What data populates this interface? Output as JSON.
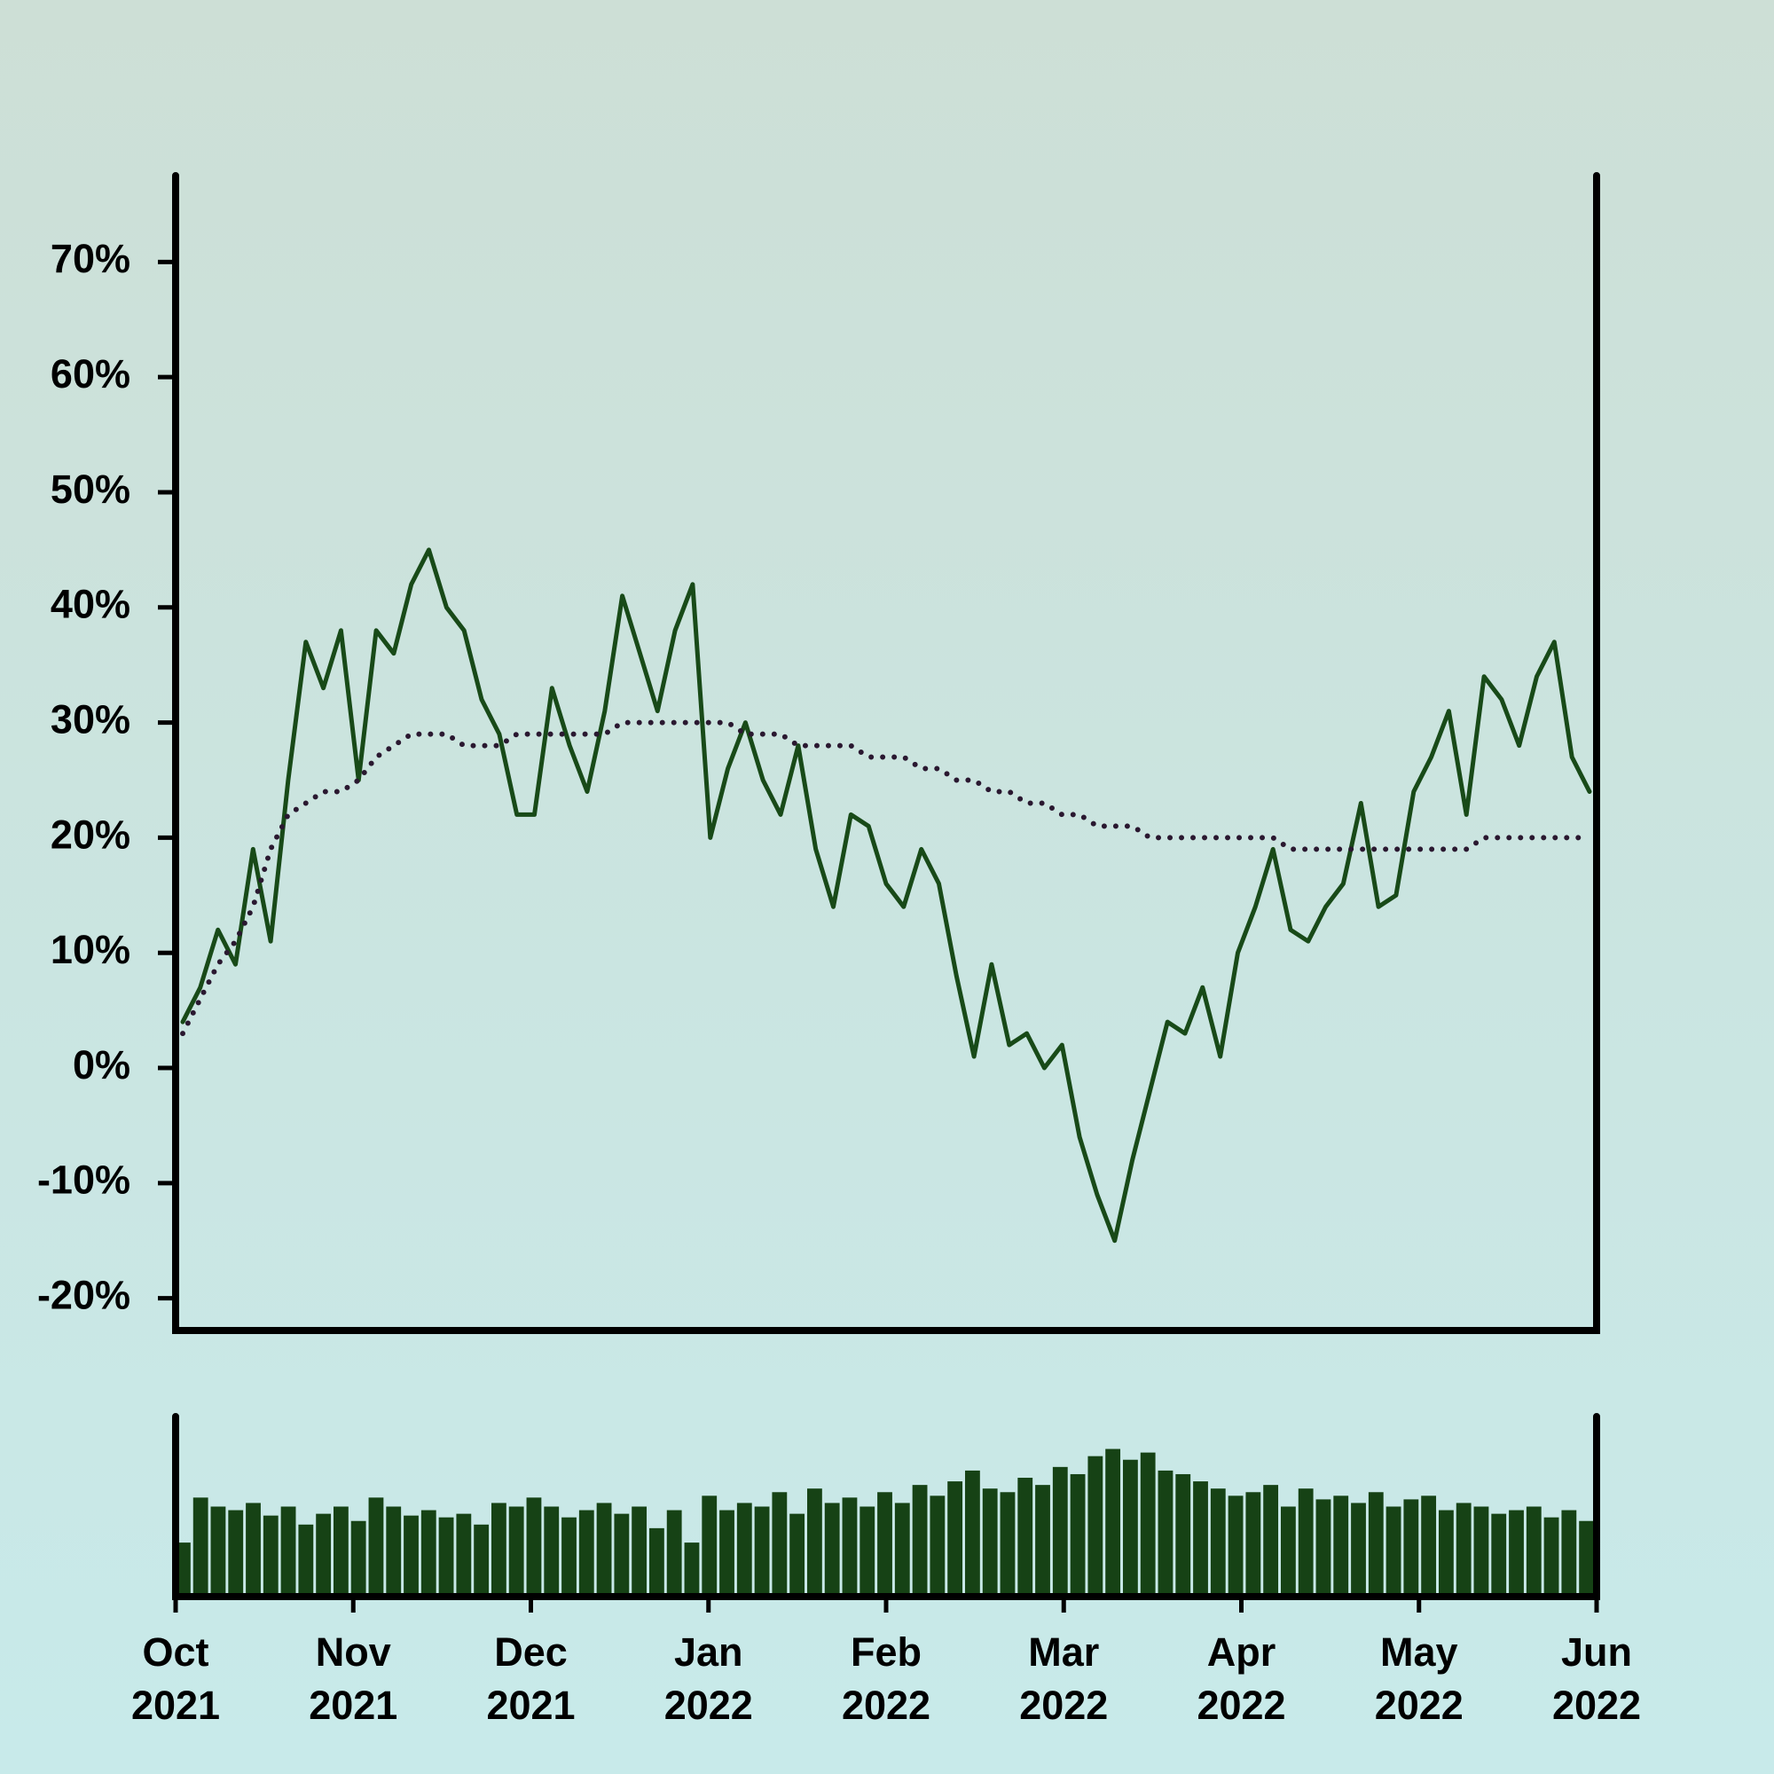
{
  "chart_data": {
    "type": "line",
    "xlim": [
      "2021-10",
      "2022-06"
    ],
    "xticks": [
      {
        "value": "2021-10",
        "label": "Oct 2021"
      },
      {
        "value": "2021-11",
        "label": "Nov 2021"
      },
      {
        "value": "2021-12",
        "label": "Dec 2021"
      },
      {
        "value": "2022-01",
        "label": "Jan 2022"
      },
      {
        "value": "2022-02",
        "label": "Feb 2022"
      },
      {
        "value": "2022-03",
        "label": "Mar 2022"
      },
      {
        "value": "2022-04",
        "label": "Apr 2022"
      },
      {
        "value": "2022-05",
        "label": "May 2022"
      },
      {
        "value": "2022-06",
        "label": "Jun 2022"
      }
    ],
    "ylim": [
      -22.8,
      77.5
    ],
    "yticks": [
      {
        "value": -20,
        "label": "-20%"
      },
      {
        "value": -10,
        "label": "-10%"
      },
      {
        "value": 0,
        "label": "0%"
      },
      {
        "value": 10,
        "label": "10%"
      },
      {
        "value": 20,
        "label": "20%"
      },
      {
        "value": 30,
        "label": "30%"
      },
      {
        "value": 40,
        "label": "40%"
      },
      {
        "value": 50,
        "label": "50%"
      },
      {
        "value": 60,
        "label": "60%"
      },
      {
        "value": 70,
        "label": "70%"
      }
    ],
    "series": [
      {
        "color": "#184a18",
        "style": "solid",
        "values": [
          4,
          7,
          12,
          9,
          19,
          11,
          25,
          37,
          33,
          38,
          25,
          38,
          36,
          42,
          45,
          40,
          38,
          32,
          29,
          22,
          22,
          33,
          28,
          24,
          31,
          41,
          36,
          31,
          38,
          42,
          20,
          26,
          30,
          25,
          22,
          28,
          19,
          14,
          22,
          21,
          16,
          14,
          19,
          16,
          8,
          1,
          9,
          2,
          3,
          0,
          2,
          -6,
          -11,
          -15,
          -8,
          -2,
          4,
          3,
          7,
          1,
          10,
          14,
          19,
          12,
          11,
          14,
          16,
          23,
          14,
          15,
          24,
          27,
          31,
          22,
          34,
          32,
          28,
          34,
          37,
          27,
          24
        ]
      },
      {
        "color": "#2a1830",
        "style": "dotted",
        "values": [
          3,
          6,
          9,
          11,
          14,
          19,
          22,
          23,
          24,
          24,
          25,
          27,
          28,
          29,
          29,
          29,
          28,
          28,
          28,
          29,
          29,
          29,
          29,
          29,
          29,
          30,
          30,
          30,
          30,
          30,
          30,
          30,
          29,
          29,
          29,
          28,
          28,
          28,
          28,
          27,
          27,
          27,
          26,
          26,
          25,
          25,
          24,
          24,
          23,
          23,
          22,
          22,
          21,
          21,
          21,
          20,
          20,
          20,
          20,
          20,
          20,
          20,
          20,
          19,
          19,
          19,
          19,
          19,
          19,
          19,
          19,
          19,
          19,
          19,
          20,
          20,
          20,
          20,
          20,
          20,
          20
        ]
      }
    ],
    "volume": {
      "color": "#164215",
      "ylim": [
        0,
        100
      ],
      "values": [
        30,
        55,
        50,
        48,
        52,
        45,
        50,
        40,
        46,
        50,
        42,
        55,
        50,
        45,
        48,
        44,
        46,
        40,
        52,
        50,
        55,
        50,
        44,
        48,
        52,
        46,
        50,
        38,
        48,
        30,
        56,
        48,
        52,
        50,
        58,
        46,
        60,
        52,
        55,
        50,
        58,
        52,
        62,
        56,
        64,
        70,
        60,
        58,
        66,
        62,
        72,
        68,
        78,
        82,
        76,
        80,
        70,
        68,
        64,
        60,
        56,
        58,
        62,
        50,
        60,
        54,
        56,
        52,
        58,
        50,
        54,
        56,
        48,
        52,
        50,
        46,
        48,
        50,
        44,
        48,
        42
      ]
    }
  }
}
